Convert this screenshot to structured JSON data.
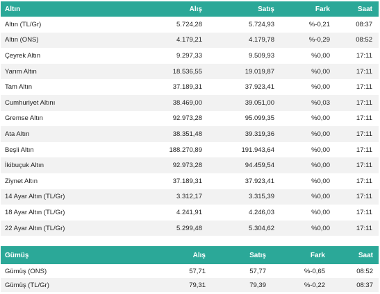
{
  "gold": {
    "headers": {
      "name": "Altın",
      "buy": "Alış",
      "sell": "Satış",
      "diff": "Fark",
      "time": "Saat"
    },
    "rows": [
      {
        "name": "Altın (TL/Gr)",
        "buy": "5.724,28",
        "sell": "5.724,93",
        "diff": "%-0,21",
        "time": "08:37"
      },
      {
        "name": "Altın (ONS)",
        "buy": "4.179,21",
        "sell": "4.179,78",
        "diff": "%-0,29",
        "time": "08:52"
      },
      {
        "name": "Çeyrek Altın",
        "buy": "9.297,33",
        "sell": "9.509,93",
        "diff": "%0,00",
        "time": "17:11"
      },
      {
        "name": "Yarım Altın",
        "buy": "18.536,55",
        "sell": "19.019,87",
        "diff": "%0,00",
        "time": "17:11"
      },
      {
        "name": "Tam Altın",
        "buy": "37.189,31",
        "sell": "37.923,41",
        "diff": "%0,00",
        "time": "17:11"
      },
      {
        "name": "Cumhuriyet Altını",
        "buy": "38.469,00",
        "sell": "39.051,00",
        "diff": "%0,03",
        "time": "17:11"
      },
      {
        "name": "Gremse Altın",
        "buy": "92.973,28",
        "sell": "95.099,35",
        "diff": "%0,00",
        "time": "17:11"
      },
      {
        "name": "Ata Altın",
        "buy": "38.351,48",
        "sell": "39.319,36",
        "diff": "%0,00",
        "time": "17:11"
      },
      {
        "name": "Beşli Altın",
        "buy": "188.270,89",
        "sell": "191.943,64",
        "diff": "%0,00",
        "time": "17:11"
      },
      {
        "name": "İkibuçuk Altın",
        "buy": "92.973,28",
        "sell": "94.459,54",
        "diff": "%0,00",
        "time": "17:11"
      },
      {
        "name": "Ziynet Altın",
        "buy": "37.189,31",
        "sell": "37.923,41",
        "diff": "%0,00",
        "time": "17:11"
      },
      {
        "name": "14 Ayar Altın (TL/Gr)",
        "buy": "3.312,17",
        "sell": "3.315,39",
        "diff": "%0,00",
        "time": "17:11"
      },
      {
        "name": "18 Ayar Altın (TL/Gr)",
        "buy": "4.241,91",
        "sell": "4.246,03",
        "diff": "%0,00",
        "time": "17:11"
      },
      {
        "name": "22 Ayar Altın (TL/Gr)",
        "buy": "5.299,48",
        "sell": "5.304,62",
        "diff": "%0,00",
        "time": "17:11"
      }
    ]
  },
  "silver": {
    "headers": {
      "name": "Gümüş",
      "buy": "Alış",
      "sell": "Satış",
      "diff": "Fark",
      "time": "Saat"
    },
    "rows": [
      {
        "name": "Gümüş (ONS)",
        "buy": "57,71",
        "sell": "57,77",
        "diff": "%-0,65",
        "time": "08:52"
      },
      {
        "name": "Gümüş (TL/Gr)",
        "buy": "79,31",
        "sell": "79,39",
        "diff": "%-0,22",
        "time": "08:37"
      }
    ]
  },
  "colors": {
    "header_bg": "#2ba898",
    "header_text": "#ffffff",
    "stripe": "#f2f2f2"
  }
}
